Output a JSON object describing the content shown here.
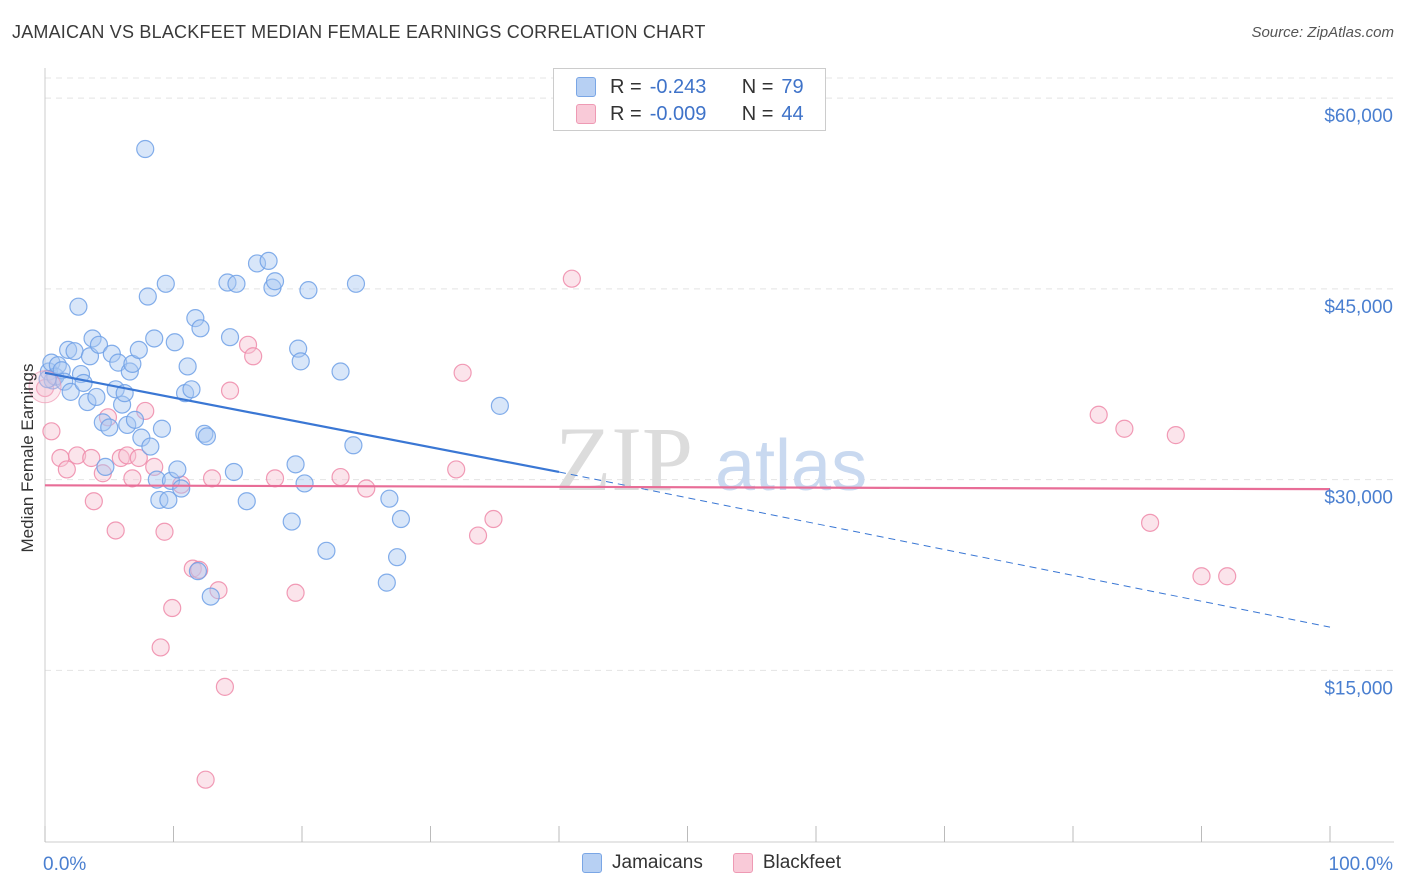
{
  "title": "JAMAICAN VS BLACKFEET MEDIAN FEMALE EARNINGS CORRELATION CHART",
  "source": "Source: ZipAtlas.com",
  "watermark": {
    "zip": "ZIP",
    "atlas": "atlas"
  },
  "legend": {
    "rows": [
      {
        "r_label": "R =",
        "r_value": "-0.243",
        "n_label": "N =",
        "n_value": "79",
        "color": "#9bbff0"
      },
      {
        "r_label": "R =",
        "r_value": "-0.009",
        "n_label": "N =",
        "n_value": "44",
        "color": "#f6b8cc"
      }
    ]
  },
  "bottom_legend": {
    "jamaicans": "Jamaicans",
    "blackfeet": "Blackfeet"
  },
  "chart_data": {
    "type": "scatter",
    "title": "JAMAICAN VS BLACKFEET MEDIAN FEMALE EARNINGS CORRELATION CHART",
    "xlabel": "",
    "ylabel": "Median Female Earnings",
    "xlim": [
      0,
      100
    ],
    "ylim": [
      1500,
      63000
    ],
    "x_tick_labels": [
      "0.0%",
      "100.0%"
    ],
    "y_ticks": [
      {
        "value": 15000,
        "label": "$15,000"
      },
      {
        "value": 30000,
        "label": "$30,000"
      },
      {
        "value": 45000,
        "label": "$45,000"
      },
      {
        "value": 60000,
        "label": "$60,000"
      }
    ],
    "grid": true,
    "series": [
      {
        "name": "Jamaicans",
        "color": "#6fa0e6",
        "fill": "#a9c7f1",
        "R": -0.243,
        "N": 79,
        "trend": {
          "x0": 0,
          "y0": 38400,
          "x_solid_end": 40,
          "y_solid_end": 30600,
          "x1": 100,
          "y1": 18400
        },
        "points": [
          [
            0.3,
            38500
          ],
          [
            0.5,
            39200
          ],
          [
            0.6,
            37800
          ],
          [
            0.8,
            38100
          ],
          [
            1.0,
            39000
          ],
          [
            1.3,
            38600
          ],
          [
            1.5,
            37700
          ],
          [
            1.8,
            40200
          ],
          [
            2.0,
            36900
          ],
          [
            2.3,
            40100
          ],
          [
            2.6,
            43600
          ],
          [
            2.8,
            38300
          ],
          [
            3.0,
            37600
          ],
          [
            3.3,
            36100
          ],
          [
            3.5,
            39700
          ],
          [
            3.7,
            41100
          ],
          [
            4.0,
            36500
          ],
          [
            4.2,
            40600
          ],
          [
            4.5,
            34500
          ],
          [
            4.7,
            31000
          ],
          [
            5.0,
            34100
          ],
          [
            5.2,
            39900
          ],
          [
            5.5,
            37100
          ],
          [
            5.7,
            39200
          ],
          [
            6.0,
            35900
          ],
          [
            6.2,
            36800
          ],
          [
            6.4,
            34300
          ],
          [
            6.6,
            38500
          ],
          [
            6.8,
            39100
          ],
          [
            7.0,
            34700
          ],
          [
            7.3,
            40200
          ],
          [
            7.5,
            33300
          ],
          [
            7.8,
            56000
          ],
          [
            8.0,
            44400
          ],
          [
            8.2,
            32600
          ],
          [
            8.5,
            41100
          ],
          [
            8.7,
            30000
          ],
          [
            8.9,
            28400
          ],
          [
            9.1,
            34000
          ],
          [
            9.4,
            45400
          ],
          [
            9.6,
            28400
          ],
          [
            9.8,
            29900
          ],
          [
            10.1,
            40800
          ],
          [
            10.3,
            30800
          ],
          [
            10.6,
            29300
          ],
          [
            10.9,
            36800
          ],
          [
            11.1,
            38900
          ],
          [
            11.4,
            37100
          ],
          [
            11.7,
            42700
          ],
          [
            11.9,
            22800
          ],
          [
            12.1,
            41900
          ],
          [
            12.4,
            33600
          ],
          [
            12.6,
            33400
          ],
          [
            12.9,
            20800
          ],
          [
            14.2,
            45500
          ],
          [
            14.4,
            41200
          ],
          [
            14.7,
            30600
          ],
          [
            14.9,
            45400
          ],
          [
            15.7,
            28300
          ],
          [
            16.5,
            47000
          ],
          [
            17.4,
            47200
          ],
          [
            17.7,
            45100
          ],
          [
            17.9,
            45600
          ],
          [
            19.2,
            26700
          ],
          [
            19.5,
            31200
          ],
          [
            19.7,
            40300
          ],
          [
            19.9,
            39300
          ],
          [
            20.2,
            29700
          ],
          [
            20.5,
            44900
          ],
          [
            21.9,
            24400
          ],
          [
            23.0,
            38500
          ],
          [
            24.0,
            32700
          ],
          [
            24.2,
            45400
          ],
          [
            26.6,
            21900
          ],
          [
            26.8,
            28500
          ],
          [
            27.4,
            23900
          ],
          [
            27.7,
            26900
          ],
          [
            35.4,
            35800
          ],
          [
            0.2,
            37900
          ]
        ]
      },
      {
        "name": "Blackfeet",
        "color": "#ee8aa9",
        "fill": "#f7c3d3",
        "R": -0.009,
        "N": 44,
        "trend": {
          "x0": 0,
          "y0": 29550,
          "x1": 100,
          "y1": 29250
        },
        "points": [
          [
            0.0,
            37200
          ],
          [
            0.5,
            33800
          ],
          [
            1.2,
            31700
          ],
          [
            1.7,
            30800
          ],
          [
            2.5,
            31900
          ],
          [
            3.6,
            31700
          ],
          [
            3.8,
            28300
          ],
          [
            4.5,
            30500
          ],
          [
            4.9,
            34900
          ],
          [
            5.5,
            26000
          ],
          [
            5.9,
            31700
          ],
          [
            6.4,
            31900
          ],
          [
            6.8,
            30100
          ],
          [
            7.3,
            31700
          ],
          [
            7.8,
            35400
          ],
          [
            8.5,
            31000
          ],
          [
            9.0,
            16800
          ],
          [
            9.3,
            25900
          ],
          [
            9.9,
            19900
          ],
          [
            10.6,
            29600
          ],
          [
            11.5,
            23000
          ],
          [
            12.0,
            22900
          ],
          [
            12.5,
            6400
          ],
          [
            13.0,
            30100
          ],
          [
            13.5,
            21300
          ],
          [
            14.0,
            13700
          ],
          [
            14.4,
            37000
          ],
          [
            15.8,
            40600
          ],
          [
            16.2,
            39700
          ],
          [
            17.9,
            30100
          ],
          [
            19.5,
            21100
          ],
          [
            23.0,
            30200
          ],
          [
            25.0,
            29300
          ],
          [
            32.0,
            30800
          ],
          [
            32.5,
            38400
          ],
          [
            33.7,
            25600
          ],
          [
            34.9,
            26900
          ],
          [
            41.0,
            45800
          ],
          [
            82.0,
            35100
          ],
          [
            84.0,
            34000
          ],
          [
            86.0,
            26600
          ],
          [
            88.0,
            33500
          ],
          [
            90.0,
            22400
          ],
          [
            92.0,
            22400
          ]
        ]
      }
    ]
  }
}
